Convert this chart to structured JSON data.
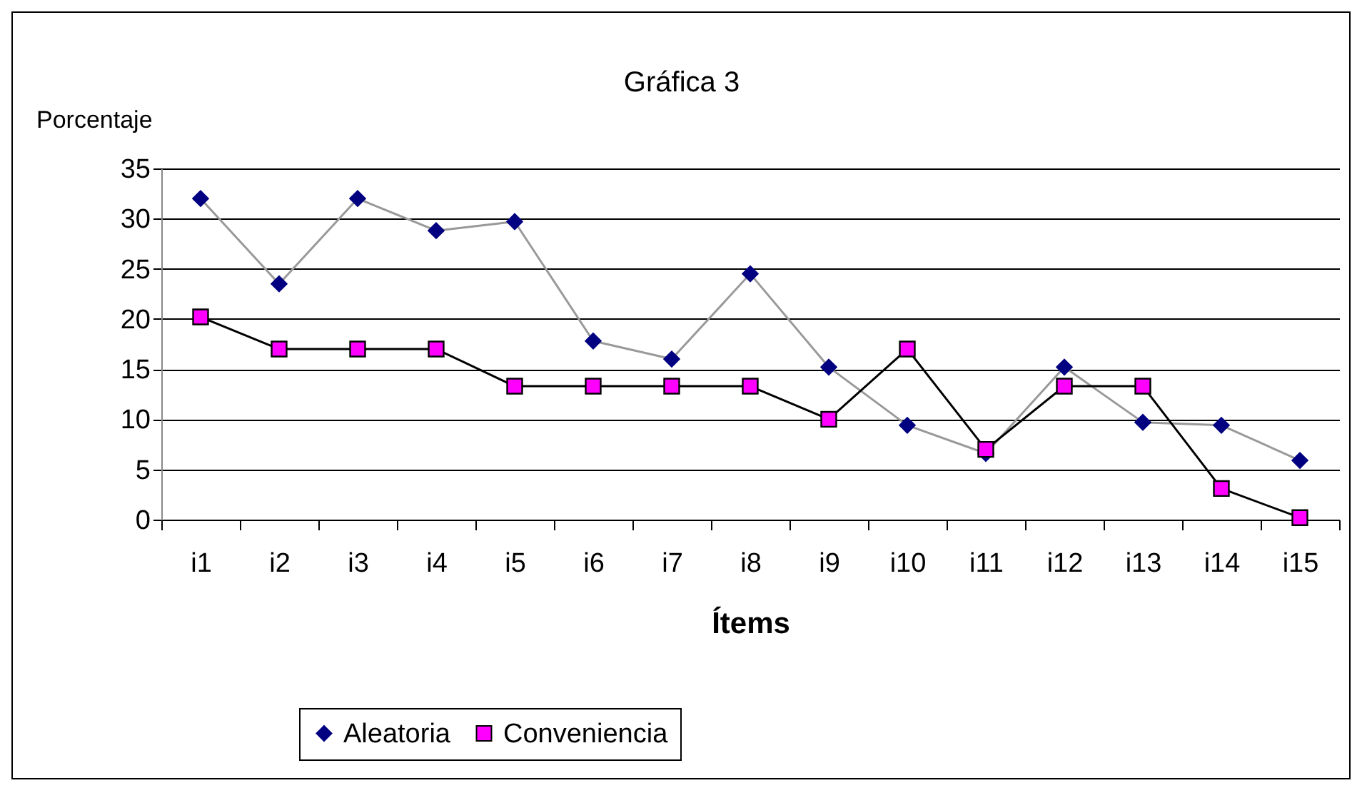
{
  "chart_data": {
    "type": "line",
    "title": "Gráfica 3",
    "ylabel": "Porcentaje",
    "xlabel": "Ítems",
    "categories": [
      "i1",
      "i2",
      "i3",
      "i4",
      "i5",
      "i6",
      "i7",
      "i8",
      "i9",
      "i10",
      "i11",
      "i12",
      "i13",
      "i14",
      "i15"
    ],
    "series": [
      {
        "name": "Aleatoria",
        "color": "#000080",
        "marker": "diamond",
        "values": [
          32,
          23.5,
          32,
          28.8,
          29.7,
          17.8,
          16,
          24.5,
          15.2,
          9.4,
          6.6,
          15.2,
          9.7,
          9.4,
          5.9
        ]
      },
      {
        "name": "Conveniencia",
        "color": "#ff00ff",
        "marker": "square",
        "values": [
          20.2,
          17,
          17,
          17,
          13.3,
          13.3,
          13.3,
          13.3,
          10,
          17,
          7,
          13.3,
          13.3,
          3.1,
          0.2
        ]
      }
    ],
    "ylim": [
      0,
      35
    ],
    "yticks": [
      0,
      5,
      10,
      15,
      20,
      25,
      30,
      35
    ],
    "grid": "y",
    "legend": "bottom",
    "line_style": "solid"
  }
}
